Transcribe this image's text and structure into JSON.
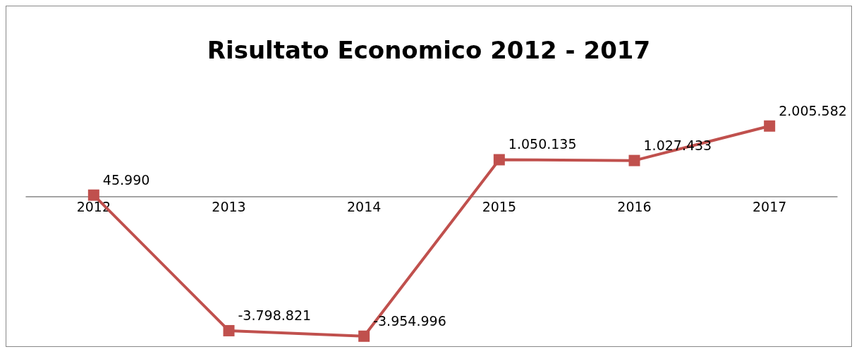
{
  "chart_data": {
    "type": "line",
    "title": "Risultato Economico 2012 - 2017",
    "categories": [
      "2012",
      "2013",
      "2014",
      "2015",
      "2016",
      "2017"
    ],
    "series": [
      {
        "color": "#c0504d",
        "values": [
          45990,
          -3798821,
          -3954996,
          1050135,
          1027433,
          2005582
        ],
        "value_labels": [
          "45.990",
          "-3.798.821",
          "-3.954.996",
          "1.050.135",
          "1.027.433",
          "2.005.582"
        ]
      }
    ],
    "marker": "square",
    "grid": false,
    "tick_labels": "x"
  }
}
